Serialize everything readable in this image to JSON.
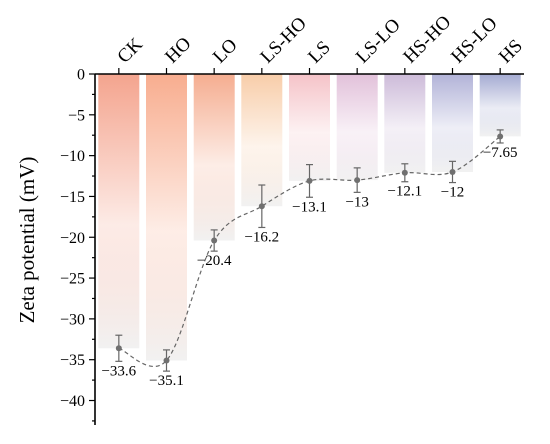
{
  "chart_data": {
    "type": "bar",
    "categories": [
      "CK",
      "HO",
      "LO",
      "LS-HO",
      "LS",
      "LS-LO",
      "HS-HO",
      "HS-LO",
      "HS"
    ],
    "values": [
      -33.6,
      -35.1,
      -20.4,
      -16.2,
      -13.1,
      -13,
      -12.1,
      -12,
      -7.65
    ],
    "value_labels": [
      "−33.6",
      "−35.1",
      "−20.4",
      "−16.2",
      "−13.1",
      "−13",
      "−12.1",
      "−12",
      "−7.65"
    ],
    "errors": [
      1.6,
      1.3,
      1.3,
      2.6,
      2.0,
      1.5,
      1.1,
      1.3,
      0.8
    ],
    "colors": [
      "#f4a48e",
      "#f8ad8f",
      "#f5ad90",
      "#f8cda9",
      "#f5c3c8",
      "#e2c1da",
      "#cdbbd9",
      "#b2b3d8",
      "#a5abd2"
    ],
    "ylabel": "Zeta potential (mV)",
    "xlabel": "",
    "ylim": [
      -43,
      0
    ],
    "yticks": [
      0,
      -5,
      -10,
      -15,
      -20,
      -25,
      -30,
      -35,
      -40
    ],
    "ytick_labels": [
      "0",
      "−5",
      "−10",
      "−15",
      "−20",
      "−25",
      "−30",
      "−35",
      "−40"
    ],
    "category_axis_position": "top",
    "overlay": "dashed trend line through bar-end markers with error bars",
    "grid": false,
    "legend": "none"
  }
}
